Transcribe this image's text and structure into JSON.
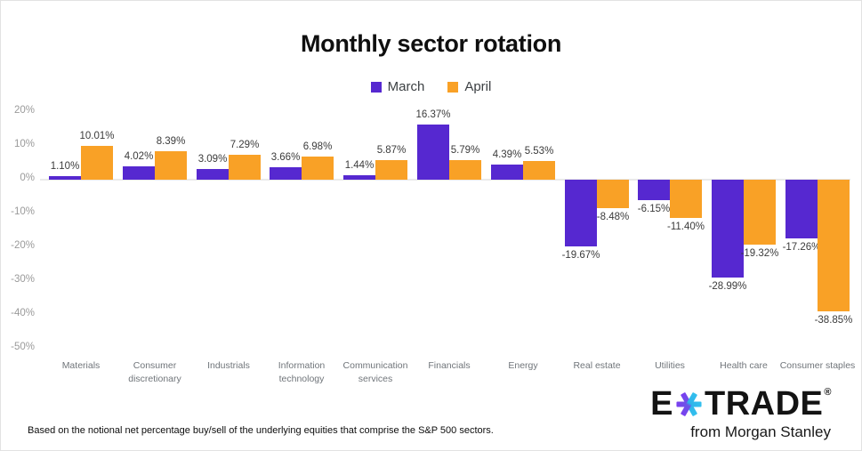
{
  "title": "Monthly sector rotation",
  "chart_data": {
    "type": "bar",
    "title": "Monthly sector rotation",
    "categories": [
      "Materials",
      "Consumer discretionary",
      "Industrials",
      "Information technology",
      "Communication services",
      "Financials",
      "Energy",
      "Real estate",
      "Utilities",
      "Health care",
      "Consumer staples"
    ],
    "series": [
      {
        "name": "March",
        "color": "#5628d0",
        "values": [
          1.1,
          4.02,
          3.09,
          3.66,
          1.44,
          16.37,
          4.39,
          -19.67,
          -6.15,
          -28.99,
          -17.26
        ]
      },
      {
        "name": "April",
        "color": "#f9a126",
        "values": [
          10.01,
          8.39,
          7.29,
          6.98,
          5.87,
          5.79,
          5.53,
          -8.48,
          -11.4,
          -19.32,
          -38.85
        ]
      }
    ],
    "value_label_format": "0.00%",
    "yticks": [
      "20%",
      "10%",
      "0%",
      "-10%",
      "-20%",
      "-30%",
      "-40%",
      "-50%"
    ],
    "ylim": [
      -50,
      20
    ],
    "grid": false,
    "legend_position": "top",
    "value_labels": true
  },
  "footnote": "Based on the notional net percentage buy/sell of the underlying equities that comprise the S&P 500 sectors.",
  "logo": {
    "brand_e": "E",
    "brand_rest": "TRADE",
    "registered": "®",
    "tagline": "from Morgan Stanley",
    "star_gradient": [
      "#7a3ff0",
      "#33b6ea"
    ]
  }
}
